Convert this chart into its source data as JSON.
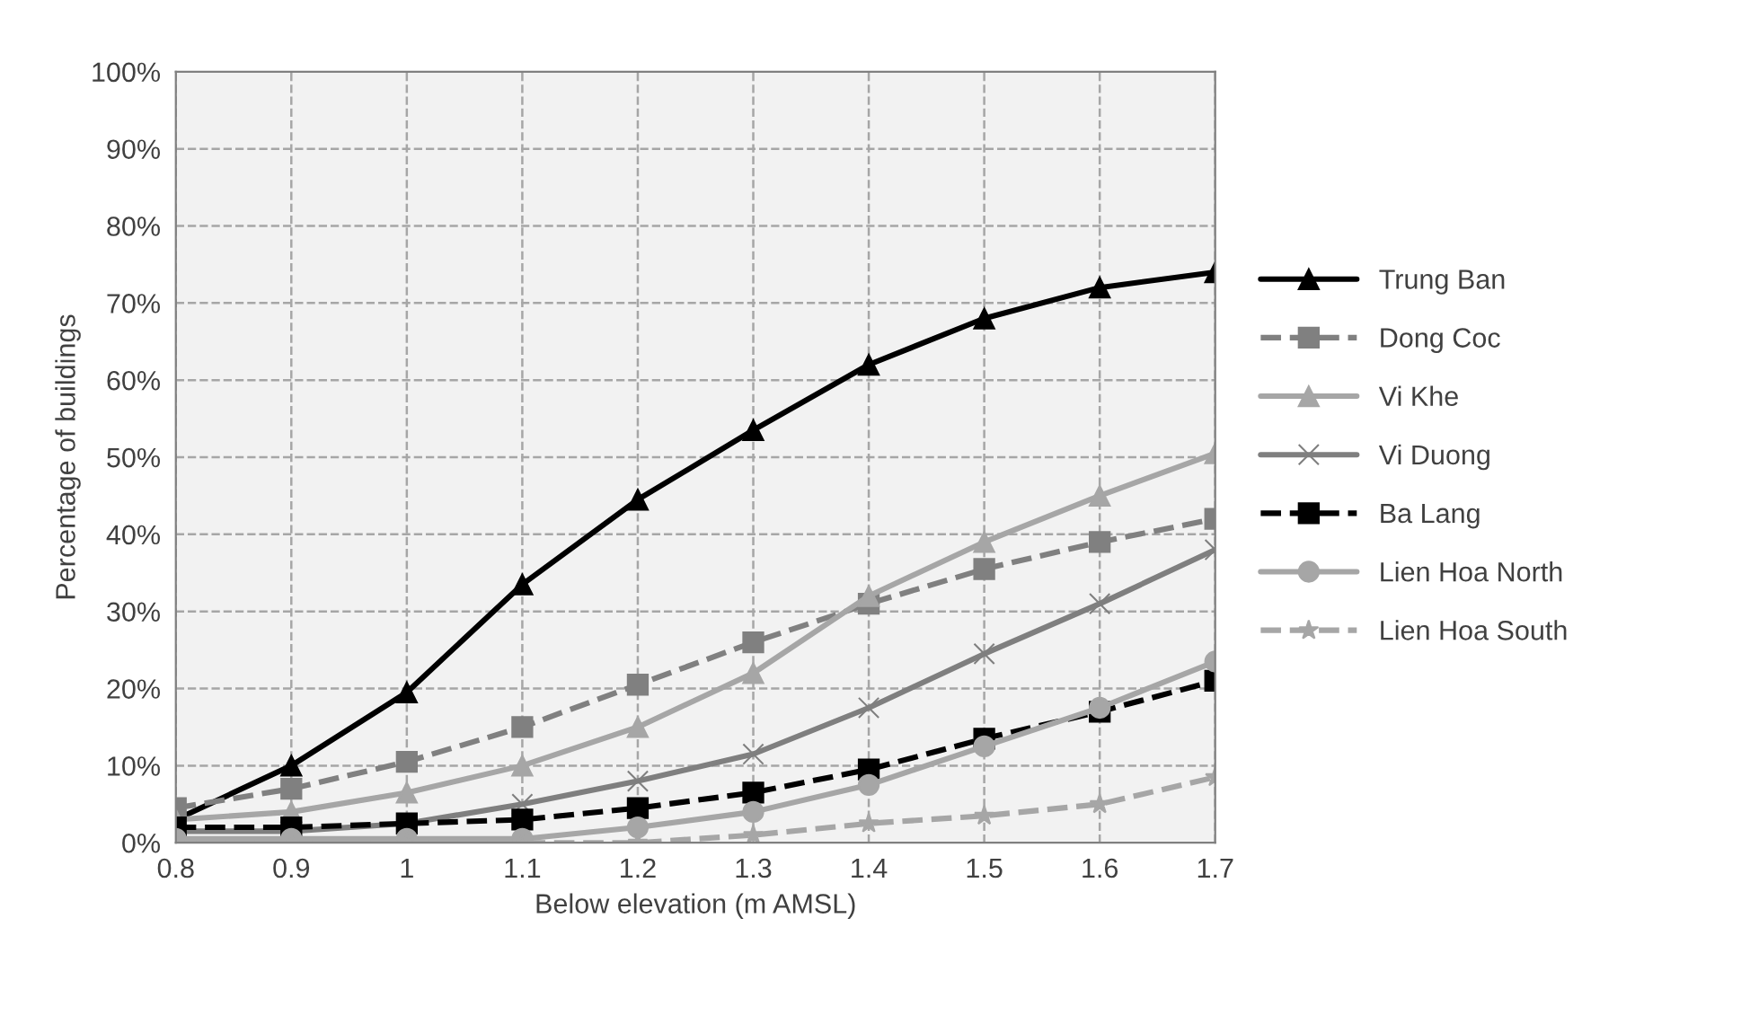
{
  "chart_data": {
    "type": "line",
    "xlabel": "Below elevation (m AMSL)",
    "ylabel": "Percentage of buildings",
    "x": [
      0.8,
      0.9,
      1.0,
      1.1,
      1.2,
      1.3,
      1.4,
      1.5,
      1.6,
      1.7
    ],
    "xlim": [
      0.8,
      1.7
    ],
    "xticks": [
      0.8,
      0.9,
      1,
      1.1,
      1.2,
      1.3,
      1.4,
      1.5,
      1.6,
      1.7
    ],
    "ylim": [
      0,
      100
    ],
    "yticks": [
      {
        "value": 0,
        "label": "0%"
      },
      {
        "value": 10,
        "label": "10%"
      },
      {
        "value": 20,
        "label": "20%"
      },
      {
        "value": 30,
        "label": "30%"
      },
      {
        "value": 40,
        "label": "40%"
      },
      {
        "value": 50,
        "label": "50%"
      },
      {
        "value": 60,
        "label": "60%"
      },
      {
        "value": 70,
        "label": "70%"
      },
      {
        "value": 80,
        "label": "80%"
      },
      {
        "value": 90,
        "label": "90%"
      },
      {
        "value": 100,
        "label": "100%"
      }
    ],
    "grid": true,
    "legend": "right",
    "series": [
      {
        "name": "Trung Ban",
        "color": "#000000",
        "marker": "triangle",
        "line_style": "solid",
        "values": [
          3,
          10,
          19.5,
          33.5,
          44.5,
          53.5,
          62,
          68,
          72,
          74
        ]
      },
      {
        "name": "Dong Coc",
        "color": "#808080",
        "marker": "square",
        "line_style": "dashed",
        "values": [
          4.5,
          7,
          10.5,
          15,
          20.5,
          26,
          31,
          35.5,
          39,
          42
        ]
      },
      {
        "name": "Vi Khe",
        "color": "#a6a6a6",
        "marker": "triangle",
        "line_style": "solid",
        "values": [
          3,
          4,
          6.5,
          10,
          15,
          22,
          32,
          39,
          45,
          50.5
        ]
      },
      {
        "name": "Vi Duong",
        "color": "#7f7f7f",
        "marker": "cross",
        "line_style": "solid",
        "values": [
          1.5,
          1.5,
          2.5,
          5,
          8,
          11.5,
          17.5,
          24.5,
          31,
          38
        ]
      },
      {
        "name": "Ba Lang",
        "color": "#000000",
        "marker": "square",
        "line_style": "dashed",
        "values": [
          2,
          2,
          2.5,
          3,
          4.5,
          6.5,
          9.5,
          13.5,
          17,
          21
        ]
      },
      {
        "name": "Lien Hoa North",
        "color": "#a6a6a6",
        "marker": "circle",
        "line_style": "solid",
        "values": [
          0.5,
          0.5,
          0.5,
          0.5,
          2,
          4,
          7.5,
          12.5,
          17.5,
          23.5
        ]
      },
      {
        "name": "Lien Hoa South",
        "color": "#a6a6a6",
        "marker": "star",
        "line_style": "dashed",
        "values": [
          0,
          0,
          0,
          0,
          0,
          1,
          2.5,
          3.5,
          5,
          8.5
        ]
      }
    ]
  }
}
